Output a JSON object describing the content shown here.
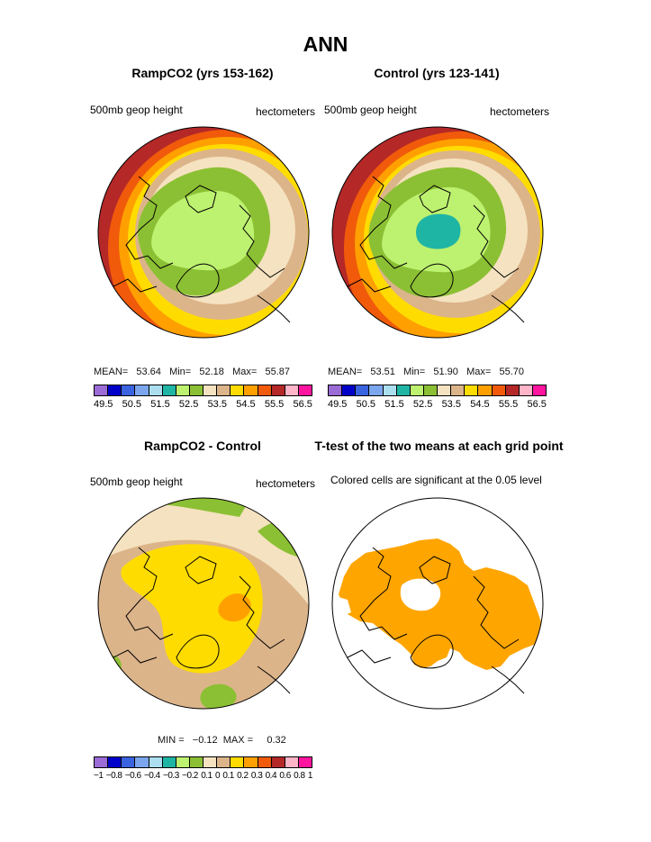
{
  "page": {
    "title": "ANN"
  },
  "panels": [
    {
      "id": "p1",
      "title": "RampCO2 (yrs 153-162)",
      "left_label": "500mb geop height",
      "right_label": "hectometers",
      "stats": "MEAN=   53.64   Min=   52.18   Max=   55.87"
    },
    {
      "id": "p2",
      "title": "Control (yrs 123-141)",
      "left_label": "500mb geop height",
      "right_label": "hectometers",
      "stats": "MEAN=   53.51   Min=   51.90   Max=   55.70"
    },
    {
      "id": "p3",
      "title": "RampCO2 - Control",
      "left_label": "500mb geop height",
      "right_label": "hectometers",
      "stats": "MIN =   −0.12  MAX =     0.32"
    },
    {
      "id": "p4",
      "title": "T-test of the two means at each grid point",
      "left_label": "Colored cells are significant at the 0.05 level"
    }
  ],
  "legend_colors": [
    "#9b6bd6",
    "#0000c8",
    "#3a63e0",
    "#7ba6ee",
    "#abdff0",
    "#1fb5a5",
    "#bdf170",
    "#8cc034",
    "#f5e2c0",
    "#dcb48a",
    "#ffdc00",
    "#ffa000",
    "#f05a0a",
    "#b42828",
    "#ffb4c8",
    "#ff14a0"
  ],
  "legend_height": {
    "ticks": [
      "49.5",
      "50.5",
      "51.5",
      "52.5",
      "53.5",
      "54.5",
      "55.5",
      "56.5"
    ]
  },
  "legend_diff": {
    "ticks": [
      "−1",
      "−0.8",
      "−0.6",
      "−0.4",
      "−0.3",
      "−0.2",
      "0.1",
      "0",
      "0.1",
      "0.2",
      "0.3",
      "0.4",
      "0.6",
      "0.8",
      "1"
    ]
  },
  "colors": {
    "significant": "#ffa500",
    "coast": "#000000"
  }
}
